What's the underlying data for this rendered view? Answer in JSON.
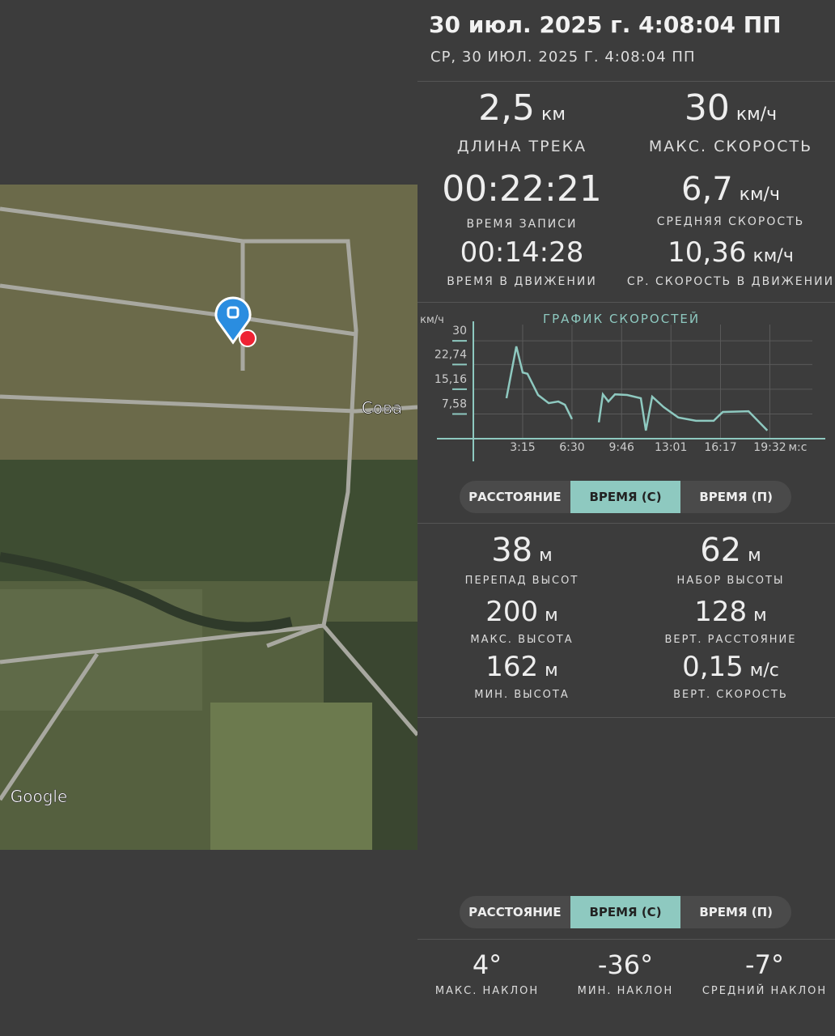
{
  "header": {
    "title": "30 июл. 2025 г. 4:08:04 ПП",
    "subtitle": "СР, 30 ИЮЛ. 2025 Г. 4:08:04 ПП"
  },
  "map": {
    "place_label": "Сова",
    "provider": "Google"
  },
  "track_stats": [
    {
      "value": "2,5",
      "unit": "км",
      "label": "ДЛИНА ТРЕКА"
    },
    {
      "value": "30",
      "unit": "км/ч",
      "label": "МАКС. СКОРОСТЬ"
    },
    {
      "value": "00:22:21",
      "unit": null,
      "label": "ВРЕМЯ ЗАПИСИ"
    },
    {
      "value": "6,7",
      "unit": "км/ч",
      "label": "СРЕДНЯЯ СКОРОСТЬ"
    },
    {
      "value": "00:14:28",
      "unit": null,
      "label": "ВРЕМЯ В ДВИЖЕНИИ"
    },
    {
      "value": "10,36",
      "unit": "км/ч",
      "label": "СР. СКОРОСТЬ В ДВИЖЕНИИ"
    }
  ],
  "chart_data": {
    "type": "line",
    "title": "ГРАФИК СКОРОСТЕЙ",
    "y_label": "км/ч",
    "x_label": "м:с",
    "color": "#8ec9c0",
    "grid": true,
    "xlim": [
      0,
      1340
    ],
    "ylim": [
      0,
      35
    ],
    "xticks": [
      {
        "value": 195,
        "label": "3:15"
      },
      {
        "value": 390,
        "label": "6:30"
      },
      {
        "value": 586,
        "label": "9:46"
      },
      {
        "value": 781,
        "label": "13:01"
      },
      {
        "value": 977,
        "label": "16:17"
      },
      {
        "value": 1172,
        "label": "19:32"
      }
    ],
    "yticks": [
      {
        "value": 7.58,
        "label": "7,58"
      },
      {
        "value": 15.16,
        "label": "15,16"
      },
      {
        "value": 22.74,
        "label": "22,74"
      },
      30
    ],
    "x": [
      131,
      170,
      195,
      214,
      256,
      298,
      336,
      362,
      390,
      440,
      496,
      512,
      534,
      560,
      608,
      662,
      682,
      707,
      752,
      810,
      880,
      950,
      986,
      1088,
      1162
    ],
    "values": [
      12.4,
      28.3,
      20.3,
      19.9,
      13.4,
      10.9,
      11.4,
      10.4,
      6.0,
      null,
      5.0,
      13.6,
      11.4,
      13.6,
      13.4,
      12.4,
      2.5,
      12.9,
      9.7,
      6.5,
      5.5,
      5.5,
      8.2,
      8.4,
      2.5
    ]
  },
  "segment_control_1": {
    "options": [
      "РАССТОЯНИЕ",
      "ВРЕМЯ (С)",
      "ВРЕМЯ (П)"
    ],
    "selected": 1
  },
  "elevation_stats": [
    {
      "value": "38",
      "unit": "м",
      "label": "ПЕРЕПАД ВЫСОТ"
    },
    {
      "value": "62",
      "unit": "м",
      "label": "НАБОР ВЫСОТЫ"
    },
    {
      "value": "200",
      "unit": "м",
      "label": "МАКС. ВЫСОТА"
    },
    {
      "value": "128",
      "unit": "м",
      "label": "ВЕРТ. РАССТОЯНИЕ"
    },
    {
      "value": "162",
      "unit": "м",
      "label": "МИН. ВЫСОТА"
    },
    {
      "value": "0,15",
      "unit": "м/с",
      "label": "ВЕРТ. СКОРОСТЬ"
    }
  ],
  "segment_control_2": {
    "options": [
      "РАССТОЯНИЕ",
      "ВРЕМЯ (С)",
      "ВРЕМЯ (П)"
    ],
    "selected": 1
  },
  "slope_stats": [
    {
      "value": "4°",
      "label": "МАКС. НАКЛОН"
    },
    {
      "value": "-36°",
      "label": "МИН. НАКЛОН"
    },
    {
      "value": "-7°",
      "label": "СРЕДНИЙ НАКЛОН"
    }
  ]
}
